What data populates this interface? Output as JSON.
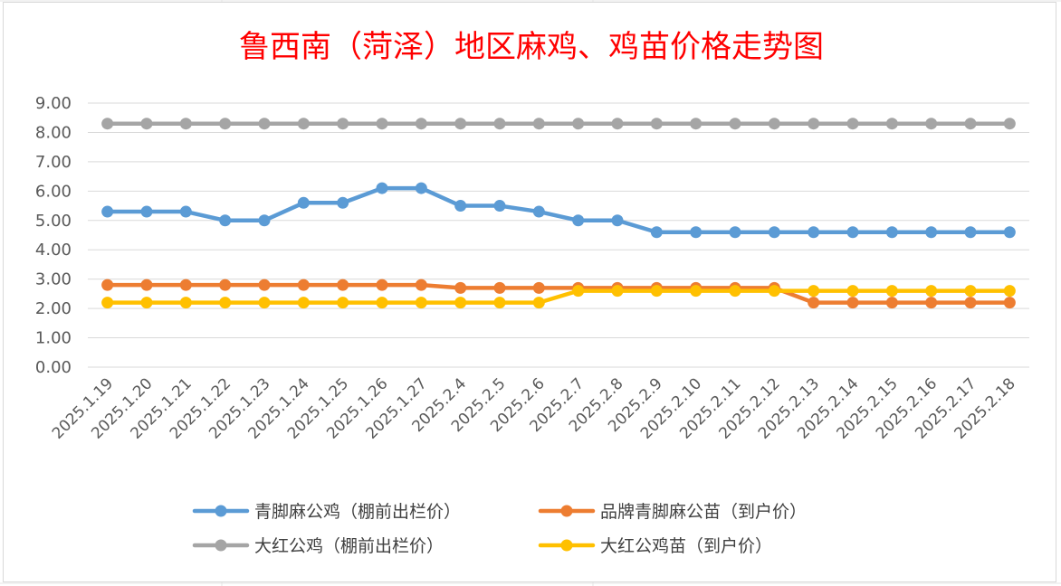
{
  "chart_data": {
    "type": "line",
    "title": "鲁西南（菏泽）地区麻鸡、鸡苗价格走势图",
    "xlabel": "",
    "ylabel": "",
    "ylim": [
      0,
      9
    ],
    "ytick_labels": [
      "0.00",
      "1.00",
      "2.00",
      "3.00",
      "4.00",
      "5.00",
      "6.00",
      "7.00",
      "8.00",
      "9.00"
    ],
    "categories": [
      "2025.1.19",
      "2025.1.20",
      "2025.1.21",
      "2025.1.22",
      "2025.1.23",
      "2025.1.24",
      "2025.1.25",
      "2025.1.26",
      "2025.1.27",
      "2025.2.4",
      "2025.2.5",
      "2025.2.6",
      "2025.2.7",
      "2025.2.8",
      "2025.2.9",
      "2025.2.10",
      "2025.2.11",
      "2025.2.12",
      "2025.2.13",
      "2025.2.14",
      "2025.2.15",
      "2025.2.16",
      "2025.2.17",
      "2025.2.18"
    ],
    "grid": true,
    "legend_position": "bottom",
    "series": [
      {
        "name": "青脚麻公鸡（棚前出栏价）",
        "color": "#5b9bd5",
        "values": [
          5.3,
          5.3,
          5.3,
          5.0,
          5.0,
          5.6,
          5.6,
          6.1,
          6.1,
          5.5,
          5.5,
          5.3,
          5.0,
          5.0,
          4.6,
          4.6,
          4.6,
          4.6,
          4.6,
          4.6,
          4.6,
          4.6,
          4.6,
          4.6
        ]
      },
      {
        "name": "品牌青脚麻公苗（到户价）",
        "color": "#ed7d31",
        "values": [
          2.8,
          2.8,
          2.8,
          2.8,
          2.8,
          2.8,
          2.8,
          2.8,
          2.8,
          2.7,
          2.7,
          2.7,
          2.7,
          2.7,
          2.7,
          2.7,
          2.7,
          2.7,
          2.2,
          2.2,
          2.2,
          2.2,
          2.2,
          2.2
        ]
      },
      {
        "name": "大红公鸡（棚前出栏价）",
        "color": "#a5a5a5",
        "values": [
          8.3,
          8.3,
          8.3,
          8.3,
          8.3,
          8.3,
          8.3,
          8.3,
          8.3,
          8.3,
          8.3,
          8.3,
          8.3,
          8.3,
          8.3,
          8.3,
          8.3,
          8.3,
          8.3,
          8.3,
          8.3,
          8.3,
          8.3,
          8.3
        ]
      },
      {
        "name": "大红公鸡苗（到户价）",
        "color": "#ffc000",
        "values": [
          2.2,
          2.2,
          2.2,
          2.2,
          2.2,
          2.2,
          2.2,
          2.2,
          2.2,
          2.2,
          2.2,
          2.2,
          2.6,
          2.6,
          2.6,
          2.6,
          2.6,
          2.6,
          2.6,
          2.6,
          2.6,
          2.6,
          2.6,
          2.6
        ]
      }
    ]
  }
}
